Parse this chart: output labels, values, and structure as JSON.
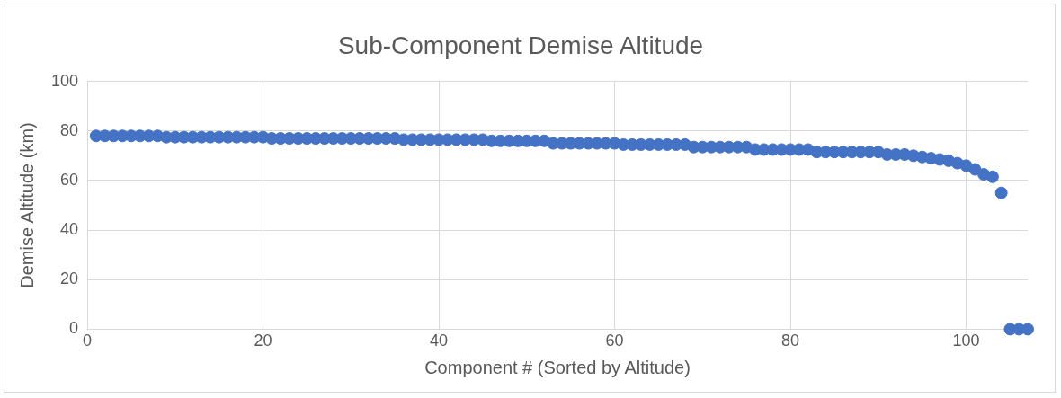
{
  "chart_data": {
    "type": "scatter",
    "title": "Sub-Component Demise Altitude",
    "xlabel": "Component # (Sorted by Altitude)",
    "ylabel": "Demise Altitude (km)",
    "x": [
      1,
      2,
      3,
      4,
      5,
      6,
      7,
      8,
      9,
      10,
      11,
      12,
      13,
      14,
      15,
      16,
      17,
      18,
      19,
      20,
      21,
      22,
      23,
      24,
      25,
      26,
      27,
      28,
      29,
      30,
      31,
      32,
      33,
      34,
      35,
      36,
      37,
      38,
      39,
      40,
      41,
      42,
      43,
      44,
      45,
      46,
      47,
      48,
      49,
      50,
      51,
      52,
      53,
      54,
      55,
      56,
      57,
      58,
      59,
      60,
      61,
      62,
      63,
      64,
      65,
      66,
      67,
      68,
      69,
      70,
      71,
      72,
      73,
      74,
      75,
      76,
      77,
      78,
      79,
      80,
      81,
      82,
      83,
      84,
      85,
      86,
      87,
      88,
      89,
      90,
      91,
      92,
      93,
      94,
      95,
      96,
      97,
      98,
      99,
      100,
      101,
      102,
      103,
      104,
      105,
      106,
      107
    ],
    "series": [
      {
        "color": "#4472c4",
        "values": [
          78,
          78,
          78,
          78,
          78,
          78,
          78,
          78,
          77.5,
          77.5,
          77.5,
          77.5,
          77.5,
          77.5,
          77.5,
          77.5,
          77.5,
          77.5,
          77.5,
          77.5,
          77,
          77,
          77,
          77,
          77,
          77,
          77,
          77,
          77,
          77,
          77,
          77,
          77,
          77,
          77,
          76.5,
          76.5,
          76.5,
          76.5,
          76.5,
          76.5,
          76.5,
          76.5,
          76.5,
          76.5,
          76,
          76,
          76,
          76,
          76,
          76,
          76,
          75,
          75,
          75,
          75,
          75,
          75,
          75,
          75,
          74.5,
          74.5,
          74.5,
          74.5,
          74.5,
          74.5,
          74.5,
          74.5,
          73.5,
          73.5,
          73.5,
          73.5,
          73.5,
          73.5,
          73.5,
          72.5,
          72.5,
          72.5,
          72.5,
          72.5,
          72.5,
          72.5,
          71.5,
          71.5,
          71.5,
          71.5,
          71.5,
          71.5,
          71.5,
          71.5,
          70.5,
          70.5,
          70.5,
          70,
          69.5,
          69,
          68.5,
          68,
          67,
          66,
          64.5,
          62.5,
          61.5,
          55,
          0,
          0,
          0
        ]
      }
    ],
    "xlim": [
      0,
      107
    ],
    "xticks": [
      0,
      20,
      40,
      60,
      80,
      100
    ],
    "ylim": [
      0,
      100
    ],
    "yticks": [
      0,
      20,
      40,
      60,
      80,
      100
    ],
    "grid": true,
    "legend": false,
    "marker": "circle"
  }
}
